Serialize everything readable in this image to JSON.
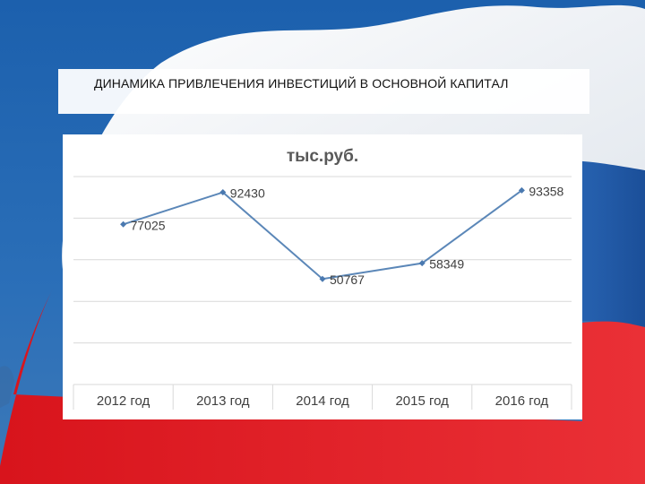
{
  "slide": {
    "heading": "ДИНАМИКА ПРИВЛЕЧЕНИЯ ИНВЕСТИЦИЙ В ОСНОВНОЙ КАПИТАЛ"
  },
  "colors": {
    "line": "#5b87b8",
    "marker": "#4a79b0",
    "grid": "#d9d9d9",
    "flag_blue": "#1f5fae",
    "flag_red": "#e3262b"
  },
  "chart_data": {
    "type": "line",
    "title": "тыс.руб.",
    "categories": [
      "2012 год",
      "2013 год",
      "2014 год",
      "2015 год",
      "2016 год"
    ],
    "values": [
      77025,
      92430,
      50767,
      58349,
      93358
    ],
    "data_labels": [
      "77025",
      "92430",
      "50767",
      "58349",
      "93358"
    ],
    "ylim": [
      0,
      100000
    ],
    "grid": true,
    "legend": "none"
  }
}
